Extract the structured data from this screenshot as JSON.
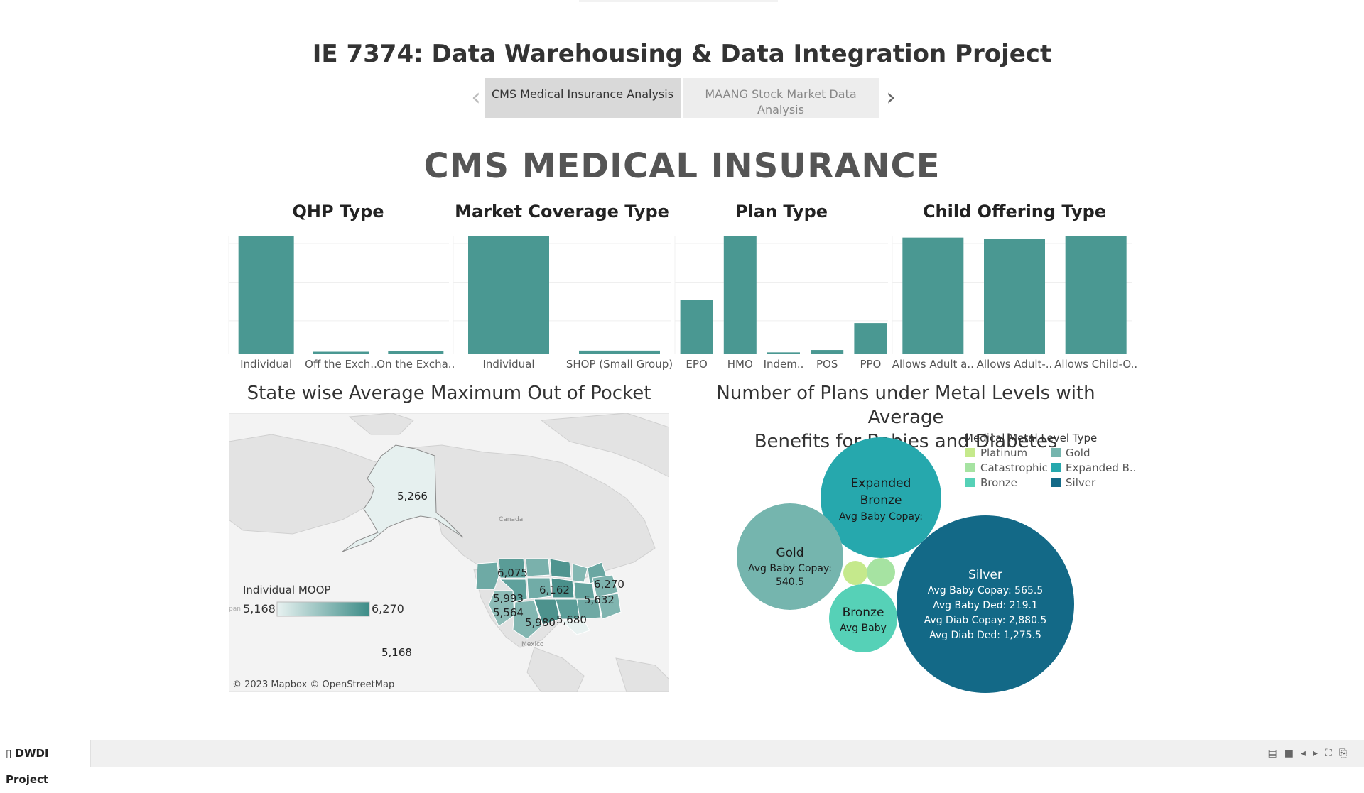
{
  "header": {
    "title": "IE 7374: Data Warehousing & Data Integration Project",
    "tabs": [
      {
        "label": "CMS Medical Insurance Analysis",
        "active": true
      },
      {
        "label": "MAANG Stock Market Data Analysis",
        "active": false
      }
    ],
    "prev_icon": "chevron-left-icon",
    "next_icon": "chevron-right-icon"
  },
  "section_title": "CMS MEDICAL INSURANCE",
  "bar_color": "#4a9892",
  "chart_data": [
    {
      "type": "bar",
      "title": "QHP Type",
      "categories": [
        "Individual",
        "Off the Exch..",
        "On the Excha.."
      ],
      "values": [
        100,
        1.5,
        2
      ],
      "ylim": [
        0,
        100
      ]
    },
    {
      "type": "bar",
      "title": "Market Coverage Type",
      "categories": [
        "Individual",
        "SHOP (Small Group)"
      ],
      "values": [
        100,
        2.5
      ],
      "ylim": [
        0,
        100
      ]
    },
    {
      "type": "bar",
      "title": "Plan Type",
      "categories": [
        "EPO",
        "HMO",
        "Indem..",
        "POS",
        "PPO"
      ],
      "values": [
        46,
        100,
        1,
        3,
        26
      ],
      "ylim": [
        0,
        100
      ]
    },
    {
      "type": "bar",
      "title": "Child Offering Type",
      "categories": [
        "Allows Adult a..",
        "Allows Adult-..",
        "Allows Child-O.."
      ],
      "values": [
        99,
        98,
        100
      ],
      "ylim": [
        0,
        100
      ]
    }
  ],
  "map": {
    "title": "State wise Average Maximum Out of Pocket",
    "legend_title": "Individual MOOP",
    "legend_min": "5,168",
    "legend_max": "6,270",
    "legend_color_low": "#e8f2f1",
    "legend_color_high": "#3d8c87",
    "labels": [
      "5,266",
      "6,075",
      "5,993",
      "6,162",
      "6,270",
      "5,632",
      "5,564",
      "5,980",
      "5,680",
      "5,168"
    ],
    "place_labels": [
      "Canada",
      "Mexico"
    ],
    "attribution": "© 2023 Mapbox © OpenStreetMap",
    "edge_label": "pan"
  },
  "bubbles": {
    "title_line1": "Number of Plans under Metal Levels with Average",
    "title_line2": "Benefits for Babies and Diabetes",
    "legend_title": "Medical Metal Level Type",
    "legend": [
      {
        "label": "Platinum",
        "color": "#c5e98c"
      },
      {
        "label": "Gold",
        "color": "#75b5ae"
      },
      {
        "label": "Catastrophic",
        "color": "#a6e3a2"
      },
      {
        "label": "Expanded B..",
        "color": "#26a8ad"
      },
      {
        "label": "Bronze",
        "color": "#56d1b7"
      },
      {
        "label": "Silver",
        "color": "#136987"
      }
    ],
    "items": [
      {
        "name": "Expanded Bronze",
        "line1": "Expanded",
        "line2": "Bronze",
        "detail": "Avg Baby Copay:",
        "color": "#26a8ad"
      },
      {
        "name": "Gold",
        "detail1": "Avg Baby Copay:",
        "detail2": "540.5",
        "color": "#75b5ae"
      },
      {
        "name": "Bronze",
        "detail": "Avg Baby",
        "color": "#56d1b7"
      },
      {
        "name": "Silver",
        "color": "#136987",
        "rows": [
          {
            "label": "Avg Baby Copay:",
            "value": "565.5"
          },
          {
            "label": "Avg Baby Ded:",
            "value": "219.1"
          },
          {
            "label": "Avg Diab Copay:",
            "value": "2,880.5"
          },
          {
            "label": "Avg Diab Ded:",
            "value": "1,275.5"
          }
        ]
      },
      {
        "name": "Platinum",
        "color": "#c5e98c"
      },
      {
        "name": "Catastrophic",
        "color": "#a6e3a2"
      }
    ]
  },
  "footer": {
    "project_label": "DWDI Project",
    "book_icon": "book-icon",
    "icons": [
      "grid-icon",
      "stop-icon",
      "prev-icon",
      "next-icon",
      "expand-icon",
      "share-icon"
    ]
  }
}
